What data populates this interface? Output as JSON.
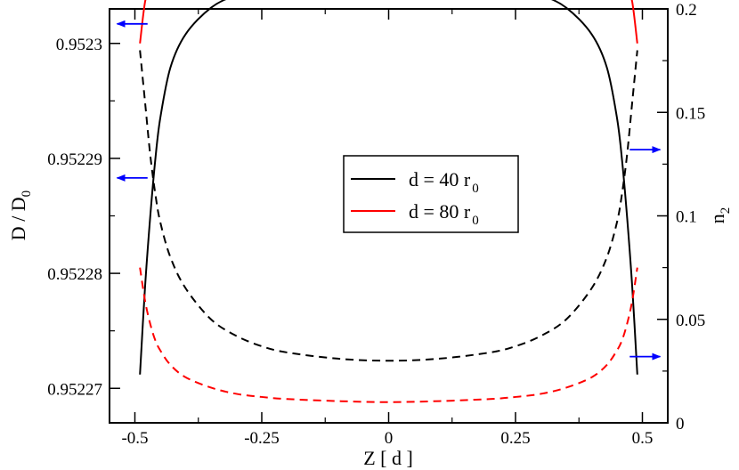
{
  "chart_data": {
    "type": "line",
    "xlabel": "Z  [ d ]",
    "ylabel_main": "D / D",
    "ylabel_main_sub": "0",
    "ylabel_right": "n",
    "ylabel_right_sub": "2",
    "xlim": [
      -0.55,
      0.55
    ],
    "ylim_left": [
      0.952267,
      0.952303
    ],
    "ylim_right": [
      0.0,
      0.2
    ],
    "x_ticks": [
      -0.5,
      -0.25,
      0,
      0.25,
      0.5
    ],
    "x_tick_labels": [
      "-0.5",
      "-0.25",
      "0",
      "0.25",
      "0.5"
    ],
    "y_left_ticks": [
      0.95227,
      0.95228,
      0.95229,
      0.9523
    ],
    "y_left_tick_labels": [
      "0.95227",
      "0.95228",
      "0.95229",
      "0.9523"
    ],
    "y_right_ticks": [
      0,
      0.05,
      0.1,
      0.15,
      0.2
    ],
    "y_right_tick_labels": [
      "0",
      "0.05",
      "0.1",
      "0.15",
      "0.2"
    ],
    "grid": false,
    "legend": {
      "placement": "center-right",
      "entries": [
        {
          "label": "d = 40  r",
          "sub": "0",
          "color": "#000000"
        },
        {
          "label": "d = 80  r",
          "sub": "0",
          "color": "#ff0000"
        }
      ]
    },
    "series": [
      {
        "name": "d = 40 r0",
        "axis": "left",
        "color": "#000000",
        "dash": false,
        "x": [
          -0.49,
          -0.48,
          -0.47,
          -0.46,
          -0.45,
          -0.43,
          -0.4,
          -0.35,
          -0.3,
          -0.25,
          -0.2,
          -0.1,
          0,
          0.1,
          0.2,
          0.25,
          0.3,
          0.35,
          0.4,
          0.43,
          0.45,
          0.46,
          0.47,
          0.48,
          0.49
        ],
        "y": [
          0.9522712,
          0.9522788,
          0.9522848,
          0.9522898,
          0.9522935,
          0.9522979,
          0.9523008,
          0.9523031,
          0.9523042,
          0.9523047,
          0.952305,
          0.9523053,
          0.9523054,
          0.9523053,
          0.952305,
          0.9523047,
          0.9523042,
          0.9523031,
          0.9523008,
          0.9522979,
          0.9522935,
          0.9522898,
          0.9522848,
          0.9522788,
          0.9522712
        ]
      },
      {
        "name": "d = 80 r0",
        "axis": "left",
        "color": "#ff0000",
        "dash": false,
        "x": [
          -0.49,
          -0.48,
          -0.47,
          -0.46,
          -0.45,
          -0.43,
          -0.4,
          -0.35,
          -0.3,
          -0.25,
          -0.2,
          -0.1,
          0,
          0.1,
          0.2,
          0.25,
          0.3,
          0.35,
          0.4,
          0.43,
          0.45,
          0.46,
          0.47,
          0.48,
          0.49
        ],
        "y": [
          0.9523,
          0.9523036,
          0.9523049,
          0.9523055,
          0.9523058,
          0.9523061,
          0.9523064,
          0.9523066,
          0.9523067,
          0.9523068,
          0.9523068,
          0.9523069,
          0.9523069,
          0.9523069,
          0.9523068,
          0.9523068,
          0.9523067,
          0.9523066,
          0.9523064,
          0.9523061,
          0.9523058,
          0.9523055,
          0.9523049,
          0.9523036,
          0.9523
        ]
      },
      {
        "name": "n2 d = 40 r0",
        "axis": "right",
        "color": "#000000",
        "dash": true,
        "x": [
          -0.49,
          -0.48,
          -0.47,
          -0.46,
          -0.45,
          -0.43,
          -0.4,
          -0.35,
          -0.3,
          -0.25,
          -0.2,
          -0.1,
          0,
          0.1,
          0.2,
          0.25,
          0.3,
          0.35,
          0.4,
          0.43,
          0.45,
          0.46,
          0.47,
          0.48,
          0.49
        ],
        "y": [
          0.18,
          0.155,
          0.13,
          0.111,
          0.097,
          0.08,
          0.065,
          0.05,
          0.042,
          0.037,
          0.034,
          0.031,
          0.03,
          0.031,
          0.034,
          0.037,
          0.042,
          0.05,
          0.065,
          0.08,
          0.097,
          0.111,
          0.13,
          0.155,
          0.18
        ]
      },
      {
        "name": "n2 d = 80 r0",
        "axis": "right",
        "color": "#ff0000",
        "dash": true,
        "x": [
          -0.49,
          -0.48,
          -0.47,
          -0.46,
          -0.45,
          -0.43,
          -0.4,
          -0.35,
          -0.3,
          -0.25,
          -0.2,
          -0.1,
          0,
          0.1,
          0.2,
          0.25,
          0.3,
          0.35,
          0.4,
          0.43,
          0.45,
          0.46,
          0.47,
          0.48,
          0.49
        ],
        "y": [
          0.075,
          0.059,
          0.048,
          0.04,
          0.035,
          0.028,
          0.022,
          0.017,
          0.014,
          0.0125,
          0.0115,
          0.0105,
          0.01,
          0.0105,
          0.0115,
          0.0125,
          0.014,
          0.017,
          0.022,
          0.028,
          0.035,
          0.04,
          0.048,
          0.059,
          0.075
        ]
      }
    ],
    "annotations": [
      {
        "type": "arrow",
        "direction": "left",
        "axis": "left",
        "color": "#0000ff",
        "x_from": -0.475,
        "x_to": -0.535,
        "y": 0.9523017
      },
      {
        "type": "arrow",
        "direction": "left",
        "axis": "left",
        "color": "#0000ff",
        "x_from": -0.475,
        "x_to": -0.535,
        "y": 0.9522883
      },
      {
        "type": "arrow",
        "direction": "right",
        "axis": "right",
        "color": "#0000ff",
        "x_from": 0.475,
        "x_to": 0.535,
        "y": 0.132
      },
      {
        "type": "arrow",
        "direction": "right",
        "axis": "right",
        "color": "#0000ff",
        "x_from": 0.475,
        "x_to": 0.535,
        "y": 0.032
      }
    ]
  }
}
